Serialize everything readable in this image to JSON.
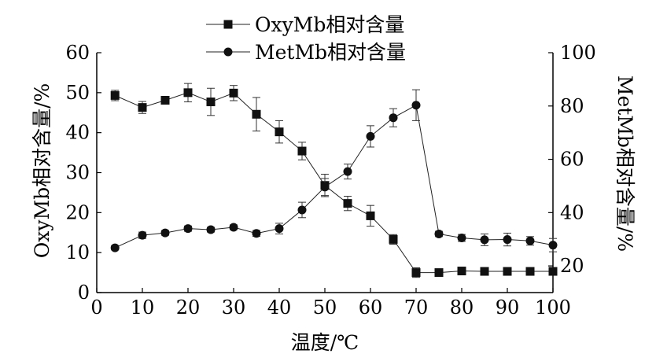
{
  "chart_data": {
    "type": "line",
    "xlabel": "温度/℃",
    "ylabel_left": "OxyMb相对含量/%",
    "ylabel_right": "MetMb相对含量/%",
    "xlim": [
      0,
      100
    ],
    "ylim_left": [
      0,
      60
    ],
    "ylim_right": [
      10,
      100
    ],
    "xticks": [
      0,
      10,
      20,
      30,
      40,
      50,
      60,
      70,
      80,
      90,
      100
    ],
    "yticks_left": [
      0,
      10,
      20,
      30,
      40,
      50,
      60
    ],
    "yticks_right": [
      20,
      40,
      60,
      80,
      100
    ],
    "legend_position": "top-center",
    "grid": false,
    "series": [
      {
        "name": "OxyMb相对含量",
        "marker": "square",
        "axis": "left",
        "x": [
          4,
          10,
          15,
          20,
          25,
          30,
          35,
          40,
          45,
          50,
          55,
          60,
          65,
          70,
          75,
          80,
          85,
          90,
          95,
          100
        ],
        "values": [
          49.3,
          46.3,
          48.1,
          50.0,
          47.7,
          49.9,
          44.6,
          40.2,
          35.4,
          26.8,
          22.3,
          19.2,
          13.3,
          5.0,
          5.0,
          5.4,
          5.3,
          5.3,
          5.3,
          5.3
        ],
        "errors": [
          1.3,
          1.5,
          0.6,
          2.3,
          3.4,
          1.9,
          4.2,
          2.8,
          2.2,
          2.8,
          1.8,
          2.6,
          1.2,
          1.2,
          0.4,
          0.5,
          0.5,
          0.5,
          0.5,
          0.6
        ]
      },
      {
        "name": "MetMb相对含量",
        "marker": "circle",
        "axis": "right",
        "x": [
          4,
          10,
          15,
          20,
          25,
          30,
          35,
          40,
          45,
          50,
          55,
          60,
          65,
          70,
          75,
          80,
          85,
          90,
          95,
          100
        ],
        "values": [
          26.8,
          31.5,
          32.4,
          34.0,
          33.6,
          34.5,
          32.2,
          34.0,
          41.0,
          49.6,
          55.4,
          68.6,
          75.6,
          80.3,
          32.0,
          30.5,
          29.8,
          29.9,
          29.4,
          27.8
        ],
        "errors": [
          0.8,
          1.2,
          0.9,
          1.0,
          0.9,
          0.9,
          1.1,
          2.0,
          2.9,
          3.2,
          2.8,
          4.0,
          3.4,
          5.8,
          1.0,
          1.3,
          2.2,
          2.4,
          1.6,
          2.5
        ]
      }
    ]
  }
}
